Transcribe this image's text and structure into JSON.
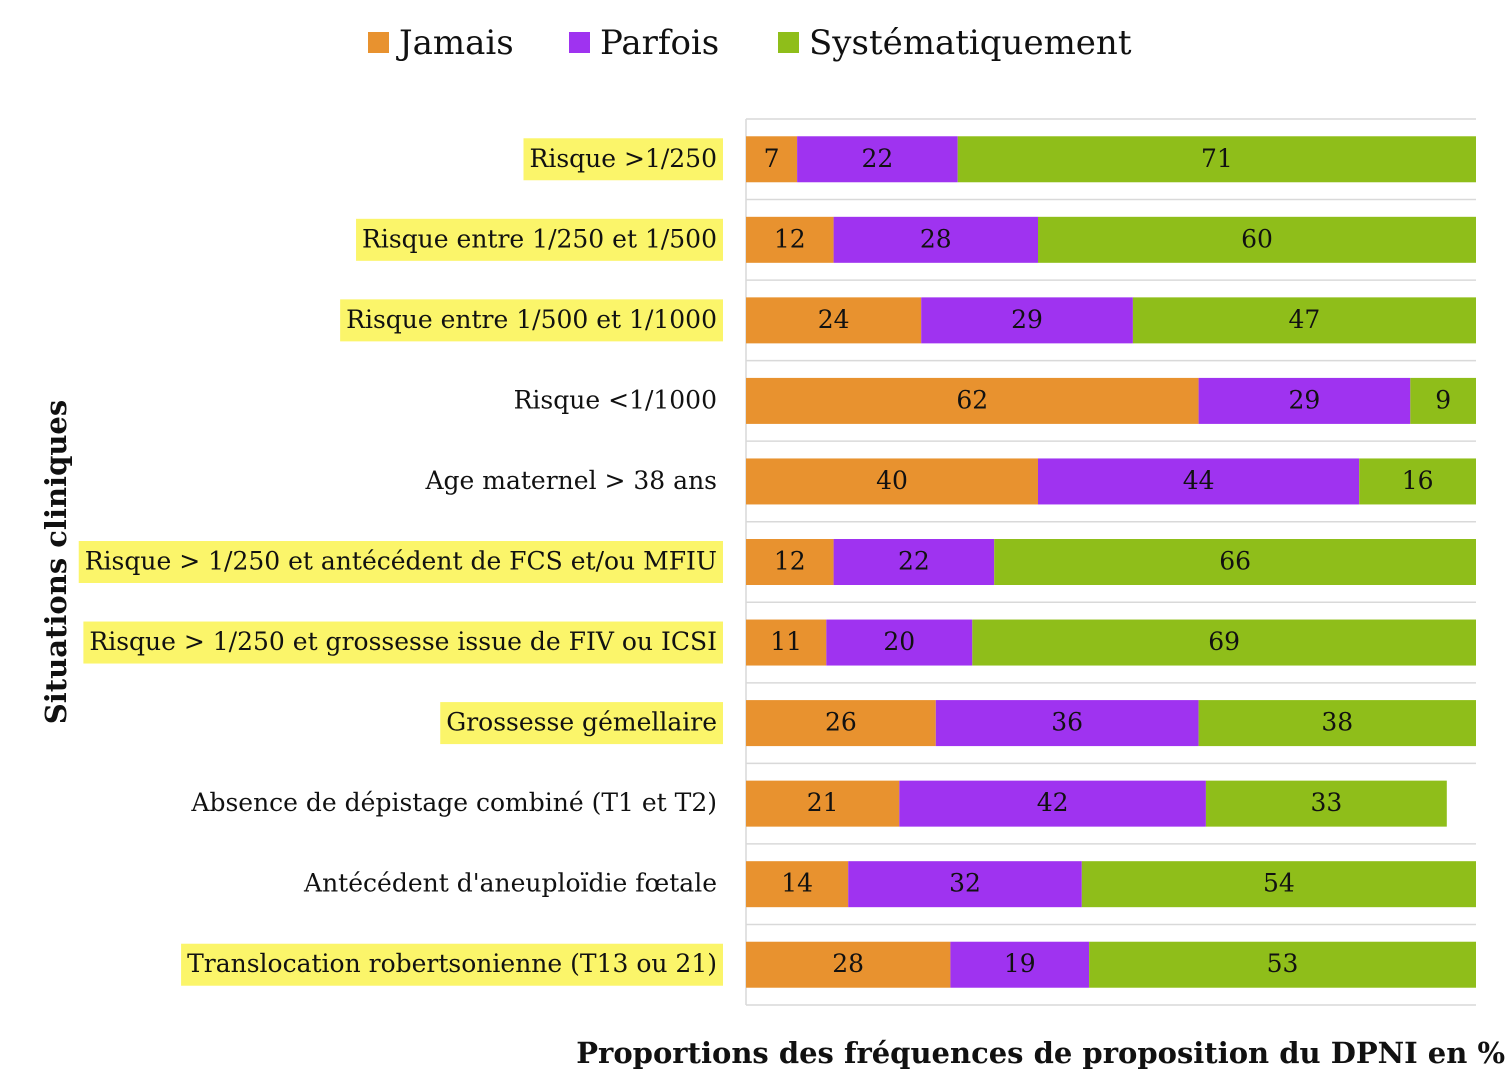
{
  "chart_data": {
    "type": "stacked-bar-horizontal",
    "y_label": "Situations cliniques",
    "x_label": "Proportions des fréquences de proposition du DPNI en  %",
    "categories": [
      "Risque >1/250",
      "Risque entre 1/250 et 1/500",
      "Risque entre 1/500 et 1/1000",
      "Risque <1/1000",
      "Age maternel > 38 ans",
      "Risque > 1/250 et antécédent de FCS et/ou MFIU",
      "Risque > 1/250 et grossesse issue de FIV ou ICSI",
      "Grossesse gémellaire",
      "Absence de dépistage combiné (T1 et T2)",
      "Antécédent d'aneuploïdie fœtale",
      "Translocation robertsonienne (T13 ou 21)"
    ],
    "highlighted": [
      true,
      true,
      true,
      false,
      false,
      true,
      true,
      true,
      false,
      false,
      true
    ],
    "series": [
      {
        "name": "Jamais",
        "color": "#e8922f",
        "values": [
          7,
          12,
          24,
          62,
          40,
          12,
          11,
          26,
          21,
          14,
          28
        ]
      },
      {
        "name": "Parfois",
        "color": "#9f33f0",
        "values": [
          22,
          28,
          29,
          29,
          44,
          22,
          20,
          36,
          42,
          32,
          19
        ]
      },
      {
        "name": "Systématiquement",
        "color": "#8fbe1a",
        "values": [
          71,
          60,
          47,
          9,
          16,
          66,
          69,
          38,
          33,
          54,
          53
        ]
      }
    ],
    "xlim": [
      0,
      100
    ],
    "legend": "top"
  }
}
